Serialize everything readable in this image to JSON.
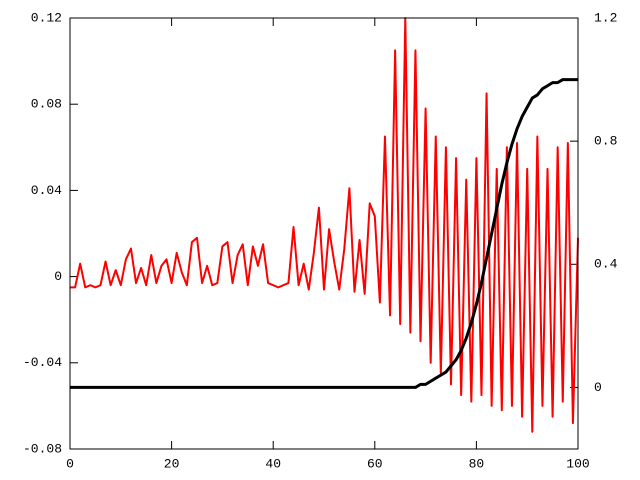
{
  "chart_data": {
    "type": "line",
    "x": [
      0,
      1,
      2,
      3,
      4,
      5,
      6,
      7,
      8,
      9,
      10,
      11,
      12,
      13,
      14,
      15,
      16,
      17,
      18,
      19,
      20,
      21,
      22,
      23,
      24,
      25,
      26,
      27,
      28,
      29,
      30,
      31,
      32,
      33,
      34,
      35,
      36,
      37,
      38,
      39,
      40,
      41,
      42,
      43,
      44,
      45,
      46,
      47,
      48,
      49,
      50,
      51,
      52,
      53,
      54,
      55,
      56,
      57,
      58,
      59,
      60,
      61,
      62,
      63,
      64,
      65,
      66,
      67,
      68,
      69,
      70,
      71,
      72,
      73,
      74,
      75,
      76,
      77,
      78,
      79,
      80,
      81,
      82,
      83,
      84,
      85,
      86,
      87,
      88,
      89,
      90,
      91,
      92,
      93,
      94,
      95,
      96,
      97,
      98,
      99,
      100
    ],
    "series": [
      {
        "color": "#ff0000",
        "values": [
          -0.005,
          -0.005,
          0.006,
          -0.005,
          -0.004,
          -0.005,
          -0.004,
          0.007,
          -0.004,
          0.003,
          -0.004,
          0.008,
          0.013,
          -0.003,
          0.004,
          -0.004,
          0.01,
          -0.003,
          0.005,
          0.008,
          -0.003,
          0.011,
          0.002,
          -0.004,
          0.016,
          0.018,
          -0.003,
          0.005,
          -0.004,
          -0.003,
          0.014,
          0.016,
          -0.003,
          0.01,
          0.015,
          -0.004,
          0.014,
          0.005,
          0.015,
          -0.003,
          -0.004,
          -0.005,
          -0.004,
          -0.003,
          0.023,
          -0.004,
          0.006,
          -0.006,
          0.011,
          0.032,
          -0.006,
          0.022,
          0.007,
          -0.006,
          0.013,
          0.041,
          -0.007,
          0.017,
          -0.008,
          0.034,
          0.028,
          -0.012,
          0.065,
          -0.018,
          0.105,
          -0.022,
          0.12,
          -0.026,
          0.105,
          -0.03,
          0.078,
          -0.04,
          0.065,
          -0.045,
          0.06,
          -0.05,
          0.055,
          -0.055,
          0.045,
          -0.058,
          0.055,
          -0.055,
          0.085,
          -0.06,
          0.05,
          -0.062,
          0.06,
          -0.06,
          0.062,
          -0.065,
          0.05,
          -0.072,
          0.065,
          -0.06,
          0.05,
          -0.065,
          0.06,
          -0.058,
          0.062,
          -0.068,
          0.018
        ]
      },
      {
        "color": "#000000",
        "axis": "y2",
        "values": [
          0,
          0,
          0,
          0,
          0,
          0,
          0,
          0,
          0,
          0,
          0,
          0,
          0,
          0,
          0,
          0,
          0,
          0,
          0,
          0,
          0,
          0,
          0,
          0,
          0,
          0,
          0,
          0,
          0,
          0,
          0,
          0,
          0,
          0,
          0,
          0,
          0,
          0,
          0,
          0,
          0,
          0,
          0,
          0,
          0,
          0,
          0,
          0,
          0,
          0,
          0,
          0,
          0,
          0,
          0,
          0,
          0,
          0,
          0,
          0,
          0,
          0,
          0,
          0,
          0,
          0,
          0,
          0,
          0,
          0.01,
          0.01,
          0.02,
          0.03,
          0.04,
          0.05,
          0.07,
          0.09,
          0.12,
          0.16,
          0.21,
          0.27,
          0.34,
          0.42,
          0.5,
          0.58,
          0.66,
          0.73,
          0.79,
          0.84,
          0.88,
          0.91,
          0.94,
          0.95,
          0.97,
          0.98,
          0.99,
          0.99,
          1,
          1,
          1,
          1
        ]
      }
    ],
    "xlim": [
      0,
      100
    ],
    "xticks": [
      0,
      20,
      40,
      60,
      80,
      100
    ],
    "ylim": [
      -0.08,
      0.12
    ],
    "yticks": [
      -0.08,
      -0.04,
      0,
      0.04,
      0.08,
      0.12
    ],
    "y2lim": [
      -0.2,
      1.2
    ],
    "y2ticks": [
      0,
      0.4,
      0.8,
      1.2
    ],
    "grid": false
  }
}
